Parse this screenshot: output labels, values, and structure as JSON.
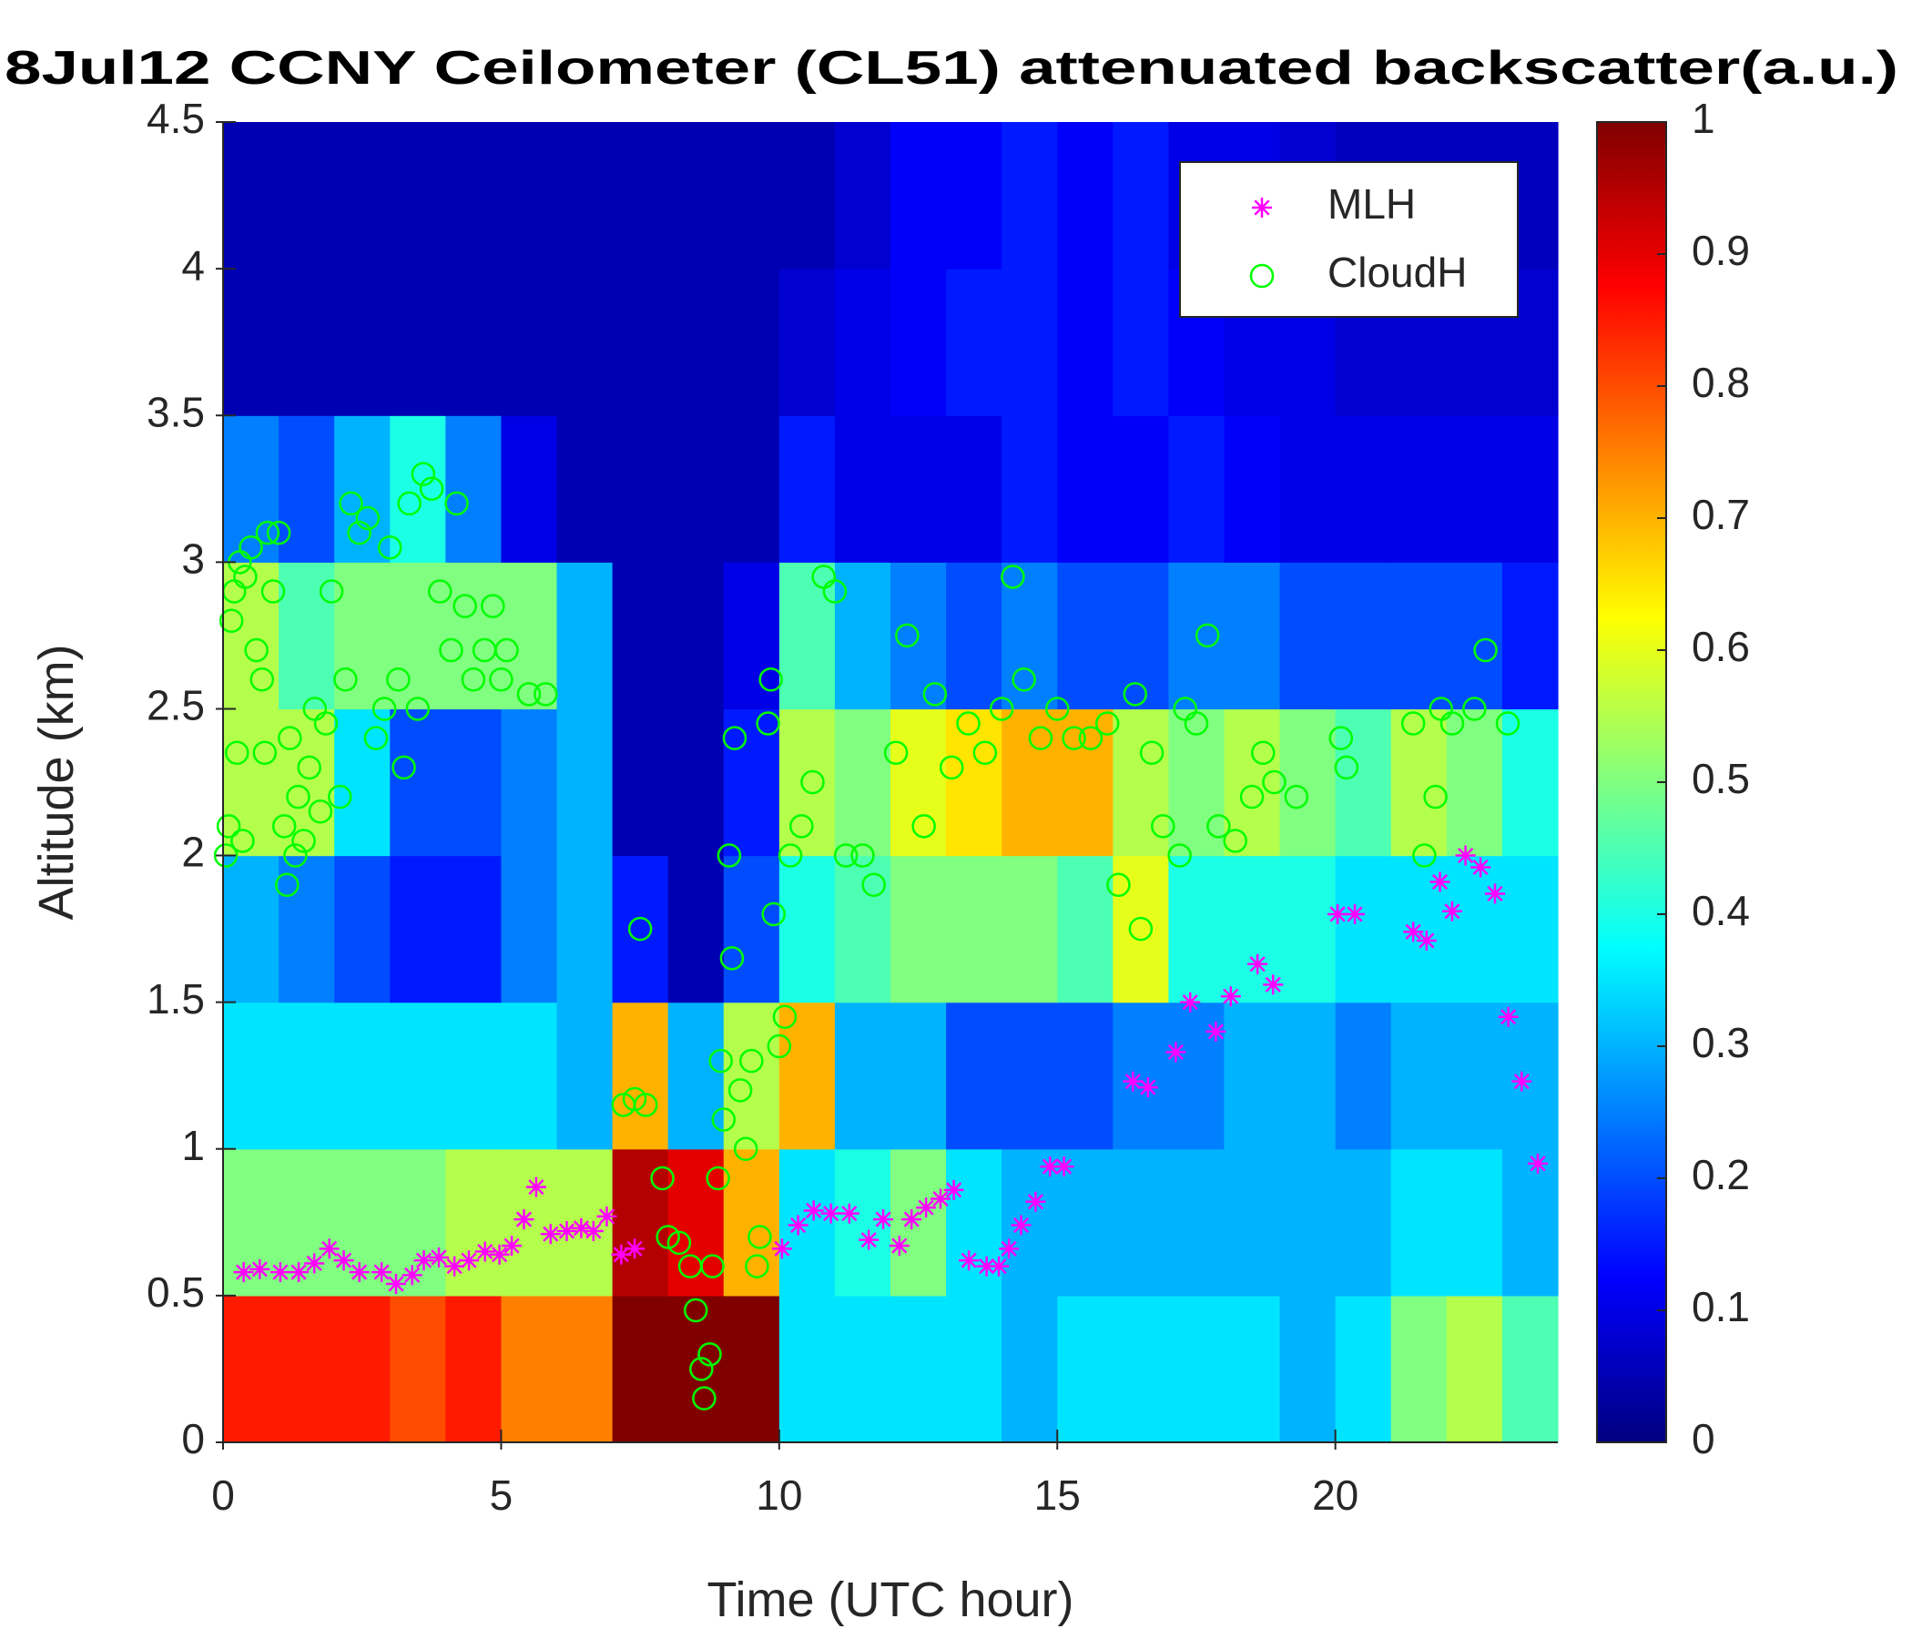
{
  "chart_data": {
    "type": "heatmap",
    "title": "8Jul12 CCNY Ceilometer (CL51) attenuated backscatter(a.u.)",
    "x_label": "Time (UTC hour)",
    "y_label": "Altitude (km)",
    "xlim": [
      0,
      24
    ],
    "xticks": [
      0,
      5,
      10,
      15,
      20
    ],
    "ylim": [
      0,
      4.5
    ],
    "yticks": [
      0,
      0.5,
      1,
      1.5,
      2,
      2.5,
      3,
      3.5,
      4,
      4.5
    ],
    "colormap": "jet",
    "clim": [
      0,
      1
    ],
    "cticks": [
      0,
      0.1,
      0.2,
      0.3,
      0.4,
      0.5,
      0.6,
      0.7,
      0.8,
      0.9,
      1
    ],
    "legend_position": "upper right",
    "z": [
      [
        0.85,
        0.85,
        0.85,
        0.8,
        0.85,
        0.75,
        0.75,
        1,
        1,
        1,
        0.35,
        0.35,
        0.35,
        0.35,
        0.3,
        0.35,
        0.35,
        0.35,
        0.35,
        0.3,
        0.35,
        0.5,
        0.55,
        0.45
      ],
      [
        0.5,
        0.5,
        0.5,
        0.5,
        0.55,
        0.55,
        0.55,
        0.95,
        0.9,
        0.7,
        0.35,
        0.4,
        0.5,
        0.35,
        0.3,
        0.3,
        0.3,
        0.3,
        0.3,
        0.3,
        0.3,
        0.35,
        0.35,
        0.3
      ],
      [
        0.35,
        0.35,
        0.35,
        0.35,
        0.35,
        0.35,
        0.3,
        0.7,
        0.3,
        0.55,
        0.7,
        0.3,
        0.3,
        0.2,
        0.2,
        0.2,
        0.25,
        0.25,
        0.3,
        0.3,
        0.25,
        0.3,
        0.3,
        0.3
      ],
      [
        0.3,
        0.25,
        0.2,
        0.15,
        0.15,
        0.25,
        0.3,
        0.15,
        0.05,
        0.2,
        0.4,
        0.45,
        0.5,
        0.5,
        0.5,
        0.45,
        0.6,
        0.4,
        0.4,
        0.4,
        0.35,
        0.35,
        0.35,
        0.35
      ],
      [
        0.55,
        0.55,
        0.35,
        0.2,
        0.2,
        0.25,
        0.3,
        0.05,
        0.05,
        0.15,
        0.55,
        0.5,
        0.6,
        0.65,
        0.7,
        0.7,
        0.55,
        0.5,
        0.55,
        0.5,
        0.45,
        0.55,
        0.5,
        0.4
      ],
      [
        0.55,
        0.45,
        0.5,
        0.5,
        0.5,
        0.5,
        0.3,
        0.05,
        0.05,
        0.1,
        0.45,
        0.3,
        0.25,
        0.2,
        0.25,
        0.2,
        0.2,
        0.25,
        0.25,
        0.2,
        0.2,
        0.2,
        0.2,
        0.15
      ],
      [
        0.25,
        0.2,
        0.3,
        0.4,
        0.25,
        0.1,
        0.05,
        0.05,
        0.05,
        0.05,
        0.15,
        0.1,
        0.1,
        0.1,
        0.15,
        0.12,
        0.12,
        0.15,
        0.12,
        0.1,
        0.1,
        0.1,
        0.1,
        0.1
      ],
      [
        0.05,
        0.05,
        0.05,
        0.05,
        0.05,
        0.05,
        0.05,
        0.05,
        0.05,
        0.05,
        0.08,
        0.1,
        0.12,
        0.15,
        0.15,
        0.12,
        0.15,
        0.12,
        0.1,
        0.1,
        0.08,
        0.08,
        0.08,
        0.08
      ],
      [
        0.05,
        0.05,
        0.05,
        0.05,
        0.05,
        0.05,
        0.05,
        0.05,
        0.05,
        0.05,
        0.05,
        0.08,
        0.12,
        0.12,
        0.15,
        0.12,
        0.15,
        0.1,
        0.1,
        0.08,
        0.06,
        0.06,
        0.06,
        0.06
      ]
    ],
    "series": [
      {
        "name": "MLH",
        "color": "#ff00ff",
        "marker": "asterisk",
        "x": [
          0.37,
          0.66,
          1.03,
          1.36,
          1.64,
          1.91,
          2.17,
          2.45,
          2.85,
          3.11,
          3.4,
          3.61,
          3.88,
          4.16,
          4.42,
          4.71,
          4.97,
          5.19,
          5.41,
          5.63,
          5.89,
          6.18,
          6.44,
          6.66,
          6.9,
          7.16,
          7.4,
          10.05,
          10.34,
          10.62,
          10.93,
          11.26,
          11.61,
          11.87,
          12.16,
          12.38,
          12.64,
          12.9,
          13.14,
          13.41,
          13.73,
          13.95,
          14.13,
          14.35,
          14.61,
          14.87,
          15.12,
          16.36,
          16.63,
          17.13,
          17.39,
          17.85,
          18.12,
          18.6,
          18.88,
          20.04,
          20.35,
          21.4,
          21.64,
          21.88,
          22.1,
          22.34,
          22.61,
          22.87,
          23.11,
          23.35,
          23.64
        ],
        "values": [
          0.58,
          0.59,
          0.58,
          0.58,
          0.61,
          0.66,
          0.62,
          0.58,
          0.58,
          0.54,
          0.57,
          0.62,
          0.63,
          0.6,
          0.62,
          0.65,
          0.64,
          0.67,
          0.76,
          0.87,
          0.71,
          0.72,
          0.73,
          0.72,
          0.77,
          0.64,
          0.66,
          0.66,
          0.74,
          0.79,
          0.78,
          0.78,
          0.69,
          0.76,
          0.67,
          0.76,
          0.8,
          0.83,
          0.86,
          0.62,
          0.6,
          0.6,
          0.66,
          0.74,
          0.82,
          0.94,
          0.94,
          1.23,
          1.21,
          1.33,
          1.5,
          1.4,
          1.52,
          1.63,
          1.56,
          1.8,
          1.8,
          1.74,
          1.71,
          1.91,
          1.81,
          2,
          1.96,
          1.87,
          1.45,
          1.23,
          0.95
        ]
      },
      {
        "name": "CloudH",
        "color": "#00ff00",
        "marker": "circle",
        "x": [
          0.05,
          0.1,
          0.15,
          0.2,
          0.25,
          0.3,
          0.35,
          0.4,
          0.5,
          0.6,
          0.7,
          0.75,
          0.8,
          0.9,
          1.0,
          1.1,
          1.15,
          1.2,
          1.3,
          1.35,
          1.45,
          1.55,
          1.65,
          1.75,
          1.85,
          1.95,
          2.1,
          2.2,
          2.3,
          2.45,
          2.6,
          2.75,
          2.9,
          3.0,
          3.15,
          3.25,
          3.35,
          3.5,
          3.6,
          3.75,
          3.9,
          4.1,
          4.2,
          4.35,
          4.5,
          4.7,
          4.85,
          5.0,
          5.1,
          5.5,
          5.8,
          7.2,
          7.4,
          7.5,
          7.6,
          7.9,
          8.0,
          8.2,
          8.4,
          8.5,
          8.6,
          8.65,
          8.75,
          8.8,
          8.9,
          8.95,
          9.0,
          9.1,
          9.15,
          9.2,
          9.3,
          9.4,
          9.5,
          9.6,
          9.65,
          9.8,
          9.85,
          9.9,
          10.0,
          10.1,
          10.2,
          10.4,
          10.6,
          10.8,
          11.0,
          11.2,
          11.5,
          11.7,
          12.1,
          12.3,
          12.6,
          12.8,
          13.1,
          13.4,
          13.7,
          14.0,
          14.2,
          14.4,
          14.7,
          15.0,
          15.3,
          15.6,
          15.9,
          16.1,
          16.4,
          16.5,
          16.7,
          16.9,
          17.2,
          17.3,
          17.5,
          17.7,
          17.9,
          18.2,
          18.5,
          18.7,
          18.9,
          19.3,
          20.1,
          20.2,
          21.4,
          21.6,
          21.8,
          21.9,
          22.1,
          22.5,
          22.7,
          23.1
        ],
        "values": [
          2.0,
          2.1,
          2.8,
          2.9,
          2.35,
          3.0,
          2.05,
          2.95,
          3.05,
          2.7,
          2.6,
          2.35,
          3.1,
          2.9,
          3.1,
          2.1,
          1.9,
          2.4,
          2.0,
          2.2,
          2.05,
          2.3,
          2.5,
          2.15,
          2.45,
          2.9,
          2.2,
          2.6,
          3.2,
          3.1,
          3.15,
          2.4,
          2.5,
          3.05,
          2.6,
          2.3,
          3.2,
          2.5,
          3.3,
          3.25,
          2.9,
          2.7,
          3.2,
          2.85,
          2.6,
          2.7,
          2.85,
          2.6,
          2.7,
          2.55,
          2.55,
          1.15,
          1.17,
          1.75,
          1.15,
          0.9,
          0.7,
          0.68,
          0.6,
          0.45,
          0.25,
          0.15,
          0.3,
          0.6,
          0.9,
          1.3,
          1.1,
          2.0,
          1.65,
          2.4,
          1.2,
          1.0,
          1.3,
          0.6,
          0.7,
          2.45,
          2.6,
          1.8,
          1.35,
          1.45,
          2.0,
          2.1,
          2.25,
          2.95,
          2.9,
          2.0,
          2.0,
          1.9,
          2.35,
          2.75,
          2.1,
          2.55,
          2.3,
          2.45,
          2.35,
          2.5,
          2.95,
          2.6,
          2.4,
          2.5,
          2.4,
          2.4,
          2.45,
          1.9,
          2.55,
          1.75,
          2.35,
          2.1,
          2.0,
          2.5,
          2.45,
          2.75,
          2.1,
          2.05,
          2.2,
          2.35,
          2.25,
          2.2,
          2.4,
          2.3,
          2.45,
          2.0,
          2.2,
          2.5,
          2.45,
          2.5,
          2.7,
          2.45
        ]
      }
    ]
  }
}
